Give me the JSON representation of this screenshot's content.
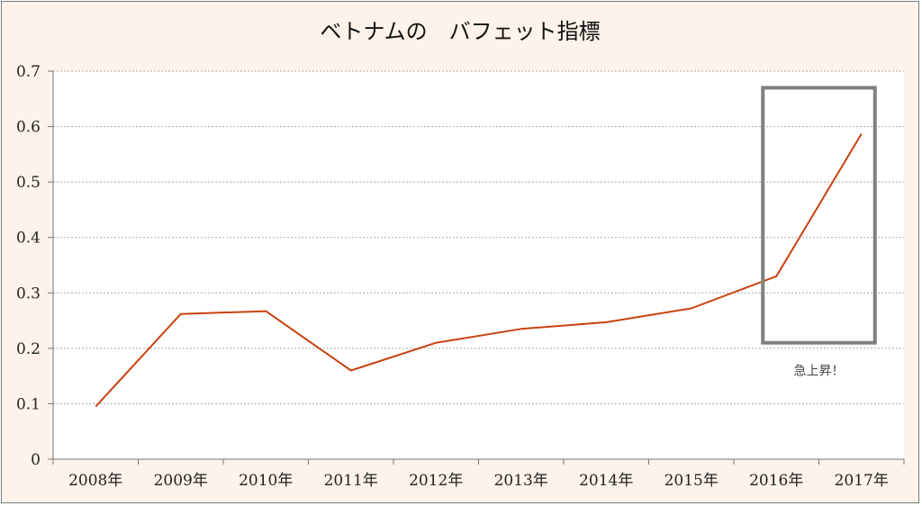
{
  "chart_data": {
    "type": "line",
    "title": "ベトナムの　バフェット指標",
    "categories": [
      "2008年",
      "2009年",
      "2010年",
      "2011年",
      "2012年",
      "2013年",
      "2014年",
      "2015年",
      "2016年",
      "2017年"
    ],
    "series": [
      {
        "values": [
          0.095,
          0.262,
          0.267,
          0.16,
          0.21,
          0.235,
          0.247,
          0.272,
          0.33,
          0.587
        ]
      }
    ],
    "ylim": [
      0,
      0.7
    ],
    "yticks": [
      "0",
      "0.1",
      "0.2",
      "0.3",
      "0.4",
      "0.5",
      "0.6",
      "0.7"
    ],
    "grid": true,
    "line_color": "#c8410e",
    "highlight": {
      "from": "2016年",
      "to": "2017年",
      "ymin": 0.21,
      "ymax": 0.67,
      "color": "#7f7f7f",
      "label": "急上昇！"
    }
  }
}
